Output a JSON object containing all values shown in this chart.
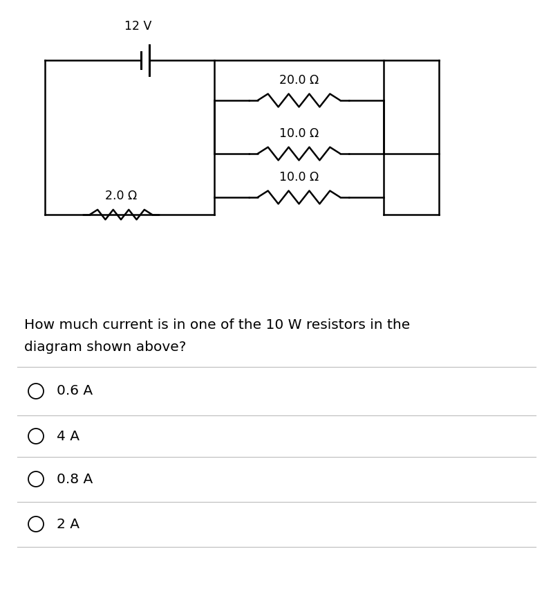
{
  "bg_color": "#ffffff",
  "battery_label": "12 V",
  "label_2ohm": "2.0 Ω",
  "label_20ohm": "20.0 Ω",
  "label_10ohm_1": "10.0 Ω",
  "label_10ohm_2": "10.0 Ω",
  "question_line1": "How much current is in one of the 10 W resistors in the",
  "question_line2": "diagram shown above?",
  "choices": [
    "0.6 A",
    "4 A",
    "0.8 A",
    "2 A"
  ],
  "line_color": "#000000",
  "text_color": "#000000",
  "choice_line_color": "#c0c0c0",
  "font_size_question": 14.5,
  "font_size_choices": 14.5,
  "font_size_labels": 12.5,
  "font_size_battery": 12.5
}
